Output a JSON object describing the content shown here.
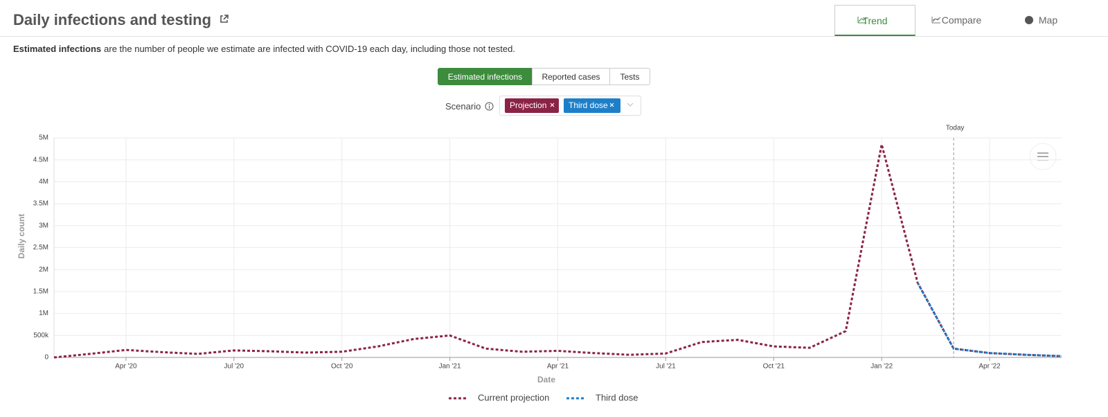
{
  "header": {
    "title": "Daily infections and testing"
  },
  "tabs": [
    "Trend",
    "Compare",
    "Map"
  ],
  "description": {
    "bold": "Estimated infections",
    "text": "are the number of people we estimate are infected with COVID-19 each day, including those not tested."
  },
  "metric_buttons": [
    "Estimated infections",
    "Reported cases",
    "Tests"
  ],
  "scenario": {
    "label": "Scenario",
    "chips": [
      "Projection",
      "Third dose"
    ]
  },
  "chart_data": {
    "type": "line",
    "x_label": "Date",
    "y_label": "Daily count",
    "x": [
      "2020-02",
      "2020-03",
      "2020-04",
      "2020-05",
      "2020-06",
      "2020-07",
      "2020-08",
      "2020-09",
      "2020-10",
      "2020-11",
      "2020-12",
      "2021-01",
      "2021-02",
      "2021-03",
      "2021-04",
      "2021-05",
      "2021-06",
      "2021-07",
      "2021-08",
      "2021-09",
      "2021-10",
      "2021-11",
      "2021-12",
      "2022-01",
      "2022-02",
      "2022-03",
      "2022-04",
      "2022-05",
      "2022-06"
    ],
    "series": [
      {
        "name": "Current projection",
        "color": "#8b2346",
        "values": [
          0,
          80000,
          170000,
          120000,
          80000,
          160000,
          140000,
          110000,
          130000,
          250000,
          420000,
          500000,
          200000,
          130000,
          150000,
          100000,
          60000,
          90000,
          350000,
          400000,
          250000,
          220000,
          600000,
          4850000,
          1700000,
          200000,
          100000,
          60000,
          30000
        ]
      },
      {
        "name": "Third dose",
        "color": "#1e7fc9",
        "values": [
          null,
          null,
          null,
          null,
          null,
          null,
          null,
          null,
          null,
          null,
          null,
          null,
          null,
          null,
          null,
          null,
          null,
          null,
          null,
          null,
          null,
          null,
          null,
          null,
          1700000,
          200000,
          100000,
          60000,
          30000
        ]
      }
    ],
    "xlim": [
      "2020-02",
      "2022-06"
    ],
    "xticks": [
      {
        "value": "2020-04",
        "label": "Apr '20"
      },
      {
        "value": "2020-07",
        "label": "Jul '20"
      },
      {
        "value": "2020-10",
        "label": "Oct '20"
      },
      {
        "value": "2021-01",
        "label": "Jan '21"
      },
      {
        "value": "2021-04",
        "label": "Apr '21"
      },
      {
        "value": "2021-07",
        "label": "Jul '21"
      },
      {
        "value": "2021-10",
        "label": "Oct '21"
      },
      {
        "value": "2022-01",
        "label": "Jan '22"
      },
      {
        "value": "2022-04",
        "label": "Apr '22"
      }
    ],
    "ylim": [
      0,
      5000000
    ],
    "yticks": [
      0,
      {
        "value": 500000,
        "label": "500k"
      },
      {
        "value": 1000000,
        "label": "1M"
      },
      {
        "value": 1500000,
        "label": "1.5M"
      },
      {
        "value": 2000000,
        "label": "2M"
      },
      {
        "value": 2500000,
        "label": "2.5M"
      },
      {
        "value": 3000000,
        "label": "3M"
      },
      {
        "value": 3500000,
        "label": "3.5M"
      },
      {
        "value": 4000000,
        "label": "4M"
      },
      {
        "value": 4500000,
        "label": "4.5M"
      },
      {
        "value": 5000000,
        "label": "5M"
      }
    ],
    "grid": true,
    "annotation": {
      "text": "Today",
      "x": "2022-03"
    }
  }
}
